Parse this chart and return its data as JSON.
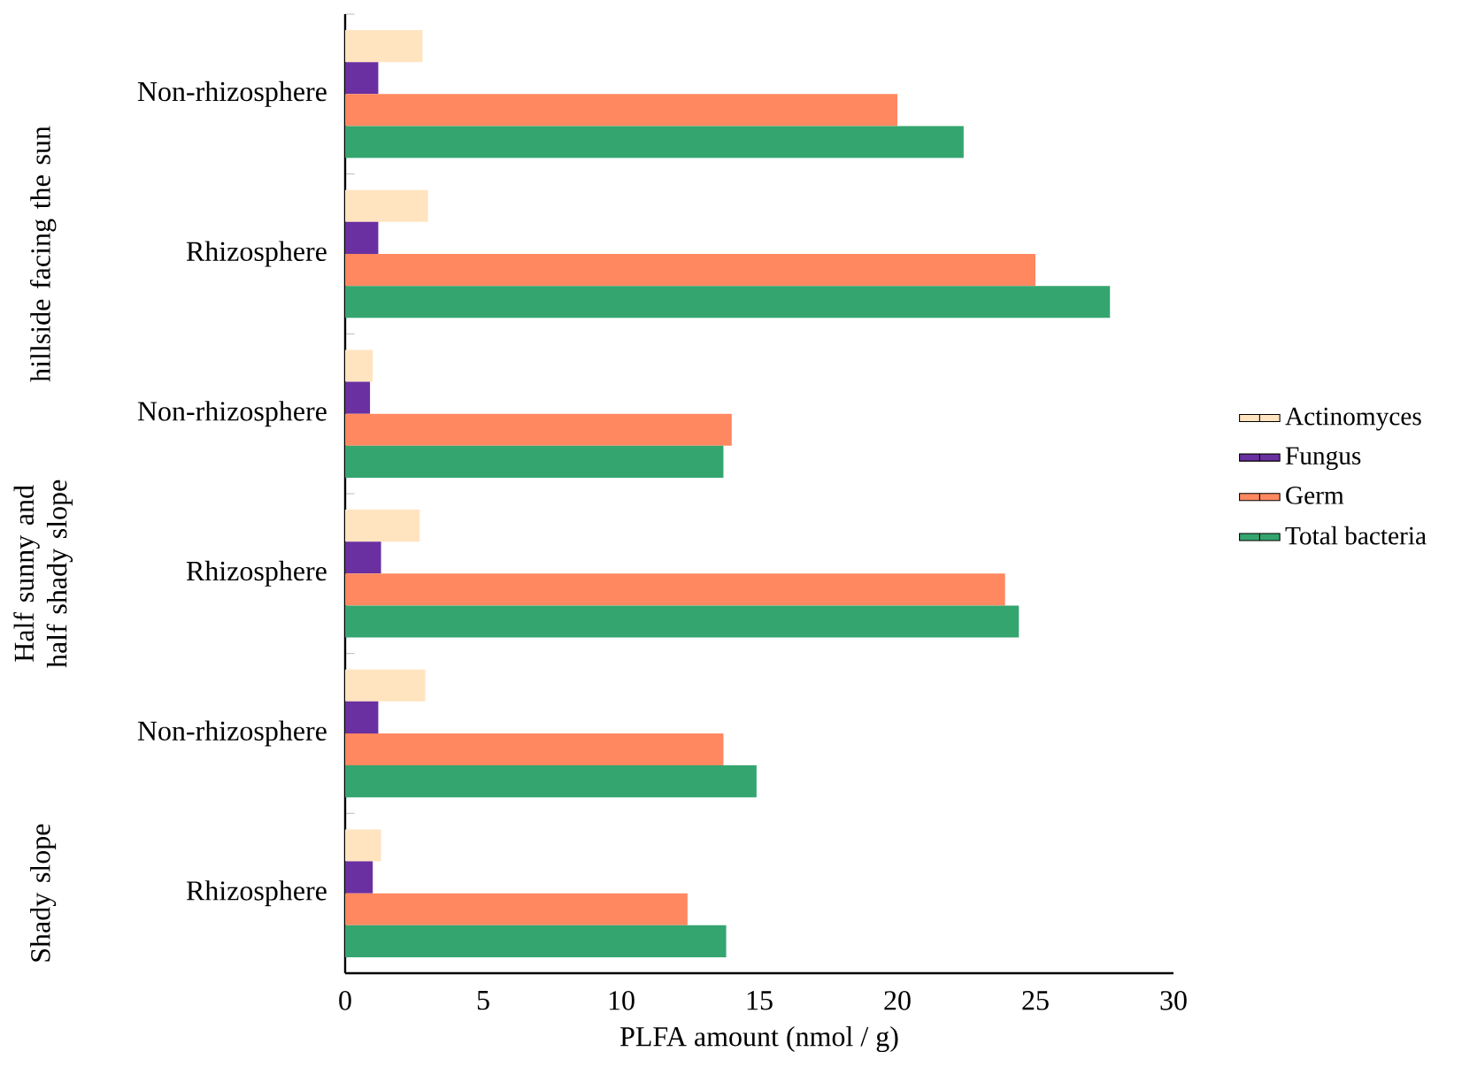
{
  "chart_data": {
    "type": "bar",
    "orientation": "horizontal",
    "xlabel": "PLFA amount (nmol / g)",
    "categories": [
      "Non-rhizosphere",
      "Rhizosphere",
      "Non-rhizosphere",
      "Rhizosphere",
      "Non-rhizosphere",
      "Rhizosphere"
    ],
    "series": [
      {
        "name": "Actinomyces",
        "color": "#ffe4bf",
        "values": [
          2.8,
          3.0,
          1.0,
          2.7,
          2.9,
          1.3
        ]
      },
      {
        "name": "Fungus",
        "color": "#6a2fa0",
        "values": [
          1.2,
          1.2,
          0.9,
          1.3,
          1.2,
          1.0
        ]
      },
      {
        "name": "Germ",
        "color": "#ff8860",
        "values": [
          20.0,
          25.0,
          14.0,
          23.9,
          13.7,
          12.4
        ]
      },
      {
        "name": "Total bacteria",
        "color": "#35a56f",
        "values": [
          22.4,
          27.7,
          13.7,
          24.4,
          14.9,
          13.8
        ]
      }
    ],
    "xlim": [
      0,
      30
    ],
    "xticks": [
      0,
      5,
      10,
      15,
      20,
      25,
      30
    ],
    "legend": "right",
    "grid": false,
    "annotations": [
      "hillside facing the sun",
      "Half sunny and half shady slope",
      "Shady slope"
    ]
  }
}
